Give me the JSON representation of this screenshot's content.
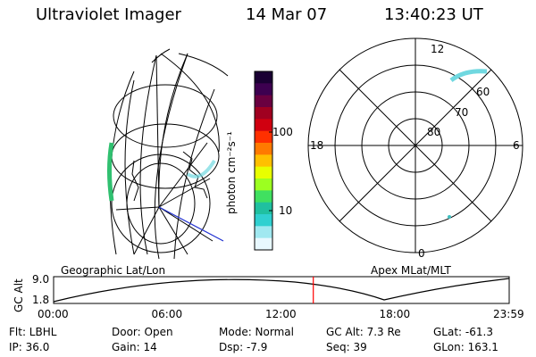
{
  "header": {
    "title": "Ultraviolet Imager",
    "date": "14 Mar 07",
    "time": "13:40:23 UT"
  },
  "colorbar": {
    "unit_label": "photon cm⁻²s⁻¹",
    "ticks": [
      "100",
      "10"
    ],
    "colors": [
      "#1a0033",
      "#3d0050",
      "#6a0040",
      "#a00020",
      "#d00010",
      "#ff3000",
      "#ff7a00",
      "#ffc000",
      "#e8ff00",
      "#9cff20",
      "#40e060",
      "#20c0a0",
      "#30d0d0",
      "#a0e8f0",
      "#e8f8ff"
    ]
  },
  "geo_panel": {
    "label": "Geographic Lat/Lon"
  },
  "polar_panel": {
    "label": "Apex MLat/MLT",
    "hour_labels": {
      "top": "12",
      "left": "18",
      "right": "6",
      "bottom": "0"
    },
    "lat_labels": [
      "60",
      "70",
      "80"
    ]
  },
  "timeline": {
    "ylabel": "GC Alt",
    "y_ticks": [
      "9.0",
      "1.8"
    ],
    "x_ticks": [
      "00:00",
      "06:00",
      "12:00",
      "18:00",
      "23:59"
    ],
    "current_time_fraction": 0.57,
    "marker_color": "#ff0000"
  },
  "info": {
    "flt": "Flt: LBHL",
    "door": "Door: Open",
    "mode": "Mode: Normal",
    "gc_alt": "GC Alt: 7.3 Re",
    "glat": "GLat: -61.3",
    "ip": "IP: 36.0",
    "gain": "Gain: 14",
    "dsp": "Dsp:   -7.9",
    "seq": "Seq: 39",
    "glon": "GLon: 163.1"
  }
}
